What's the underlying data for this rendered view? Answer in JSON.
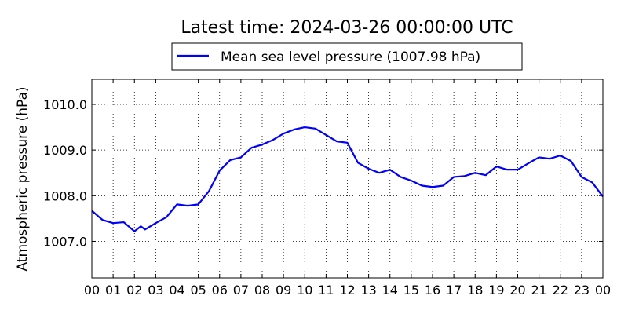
{
  "chart_data": {
    "type": "line",
    "title": "Latest time: 2024-03-26 00:00:00 UTC",
    "y_label": "Atmospheric pressure (hPa)",
    "x": [
      0,
      0.5,
      1,
      1.5,
      2,
      2.3,
      2.5,
      3,
      3.5,
      4,
      4.5,
      5,
      5.5,
      6,
      6.5,
      7,
      7.5,
      8,
      8.5,
      9,
      9.5,
      10,
      10.5,
      11,
      11.5,
      12,
      12.5,
      13,
      13.5,
      14,
      14.5,
      15,
      15.5,
      16,
      16.5,
      17,
      17.5,
      18,
      18.5,
      19,
      19.5,
      20,
      20.5,
      21,
      21.5,
      22,
      22.5,
      23,
      23.5,
      24
    ],
    "series": [
      {
        "name": "Mean sea level pressure (1007.98 hPa)",
        "color": "#0000ff",
        "values": [
          1007.67,
          1007.47,
          1007.4,
          1007.42,
          1007.22,
          1007.33,
          1007.26,
          1007.4,
          1007.53,
          1007.81,
          1007.78,
          1007.81,
          1008.1,
          1008.55,
          1008.78,
          1008.84,
          1009.05,
          1009.12,
          1009.22,
          1009.36,
          1009.45,
          1009.5,
          1009.47,
          1009.33,
          1009.19,
          1009.16,
          1008.72,
          1008.59,
          1008.5,
          1008.57,
          1008.41,
          1008.33,
          1008.22,
          1008.19,
          1008.22,
          1008.41,
          1008.43,
          1008.5,
          1008.45,
          1008.64,
          1008.57,
          1008.57,
          1008.71,
          1008.84,
          1008.81,
          1008.88,
          1008.76,
          1008.41,
          1008.29,
          1007.98
        ]
      }
    ],
    "xlim": [
      0,
      24
    ],
    "xticks": [
      {
        "value": 0,
        "label": "00"
      },
      {
        "value": 1,
        "label": "01"
      },
      {
        "value": 2,
        "label": "02"
      },
      {
        "value": 3,
        "label": "03"
      },
      {
        "value": 4,
        "label": "04"
      },
      {
        "value": 5,
        "label": "05"
      },
      {
        "value": 6,
        "label": "06"
      },
      {
        "value": 7,
        "label": "07"
      },
      {
        "value": 8,
        "label": "08"
      },
      {
        "value": 9,
        "label": "09"
      },
      {
        "value": 10,
        "label": "10"
      },
      {
        "value": 11,
        "label": "11"
      },
      {
        "value": 12,
        "label": "12"
      },
      {
        "value": 13,
        "label": "13"
      },
      {
        "value": 14,
        "label": "14"
      },
      {
        "value": 15,
        "label": "15"
      },
      {
        "value": 16,
        "label": "16"
      },
      {
        "value": 17,
        "label": "17"
      },
      {
        "value": 18,
        "label": "18"
      },
      {
        "value": 19,
        "label": "19"
      },
      {
        "value": 20,
        "label": "20"
      },
      {
        "value": 21,
        "label": "21"
      },
      {
        "value": 22,
        "label": "22"
      },
      {
        "value": 23,
        "label": "23"
      },
      {
        "value": 24,
        "label": "00"
      }
    ],
    "ylim": [
      1006.2,
      1010.55
    ],
    "yticks": [
      {
        "value": 1007,
        "label": "1007.0"
      },
      {
        "value": 1008,
        "label": "1008.0"
      },
      {
        "value": 1009,
        "label": "1009.0"
      },
      {
        "value": 1010,
        "label": "1010.0"
      }
    ],
    "grid": true
  }
}
